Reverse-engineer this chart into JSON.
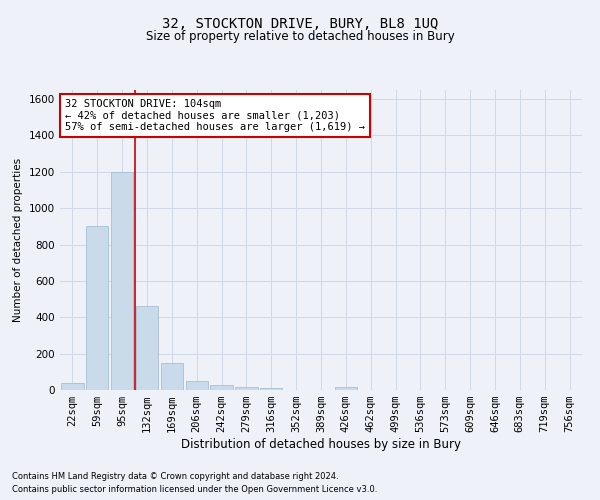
{
  "title": "32, STOCKTON DRIVE, BURY, BL8 1UQ",
  "subtitle": "Size of property relative to detached houses in Bury",
  "xlabel": "Distribution of detached houses by size in Bury",
  "ylabel": "Number of detached properties",
  "footnote1": "Contains HM Land Registry data © Crown copyright and database right 2024.",
  "footnote2": "Contains public sector information licensed under the Open Government Licence v3.0.",
  "categories": [
    "22sqm",
    "59sqm",
    "95sqm",
    "132sqm",
    "169sqm",
    "206sqm",
    "242sqm",
    "279sqm",
    "316sqm",
    "352sqm",
    "389sqm",
    "426sqm",
    "462sqm",
    "499sqm",
    "536sqm",
    "573sqm",
    "609sqm",
    "646sqm",
    "683sqm",
    "719sqm",
    "756sqm"
  ],
  "values": [
    40,
    900,
    1200,
    460,
    150,
    50,
    25,
    15,
    10,
    0,
    0,
    15,
    0,
    0,
    0,
    0,
    0,
    0,
    0,
    0,
    0
  ],
  "bar_color": "#c9daea",
  "bar_edge_color": "#a0b8d0",
  "grid_color": "#d0d8e8",
  "background_color": "#eef2f8",
  "red_line_x": 2.5,
  "annotation_text": "32 STOCKTON DRIVE: 104sqm\n← 42% of detached houses are smaller (1,203)\n57% of semi-detached houses are larger (1,619) →",
  "annotation_box_color": "#ffffff",
  "annotation_box_edge": "#cc0000",
  "red_line_color": "#cc0000",
  "ylim": [
    0,
    1650
  ],
  "yticks": [
    0,
    200,
    400,
    600,
    800,
    1000,
    1200,
    1400,
    1600
  ],
  "title_fontsize": 10,
  "subtitle_fontsize": 8.5,
  "xlabel_fontsize": 8.5,
  "ylabel_fontsize": 7.5,
  "tick_fontsize": 7.5,
  "annot_fontsize": 7.5
}
